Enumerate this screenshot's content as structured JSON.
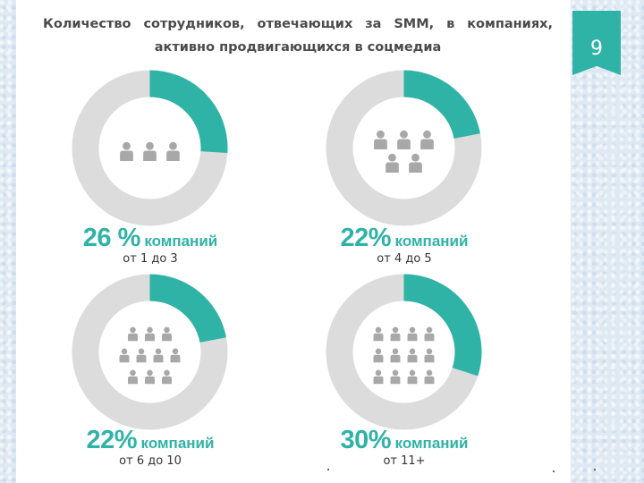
{
  "header": {
    "title": "Количество сотрудников, отвечающих за SMM, в компаниях, активно продвигающихся в соцмедиа",
    "page_number": "9"
  },
  "colors": {
    "accent": "#2fb3a6",
    "track": "#dcdcdc",
    "icon": "#a8a8a8",
    "background": "#dfe9f3"
  },
  "chart_data": [
    {
      "type": "pie",
      "value_percent": 26,
      "percent_label": "26 %",
      "unit_label": "компаний",
      "category": "от 1 до 3",
      "people_icons": 3
    },
    {
      "type": "pie",
      "value_percent": 22,
      "percent_label": "22%",
      "unit_label": "компаний",
      "category": "от 4 до 5",
      "people_icons": 5
    },
    {
      "type": "pie",
      "value_percent": 22,
      "percent_label": "22%",
      "unit_label": "компаний",
      "category": "от 6 до 10",
      "people_icons": 10
    },
    {
      "type": "pie",
      "value_percent": 30,
      "percent_label": "30%",
      "unit_label": "компаний",
      "category": "от 11+",
      "people_icons": 12
    }
  ]
}
